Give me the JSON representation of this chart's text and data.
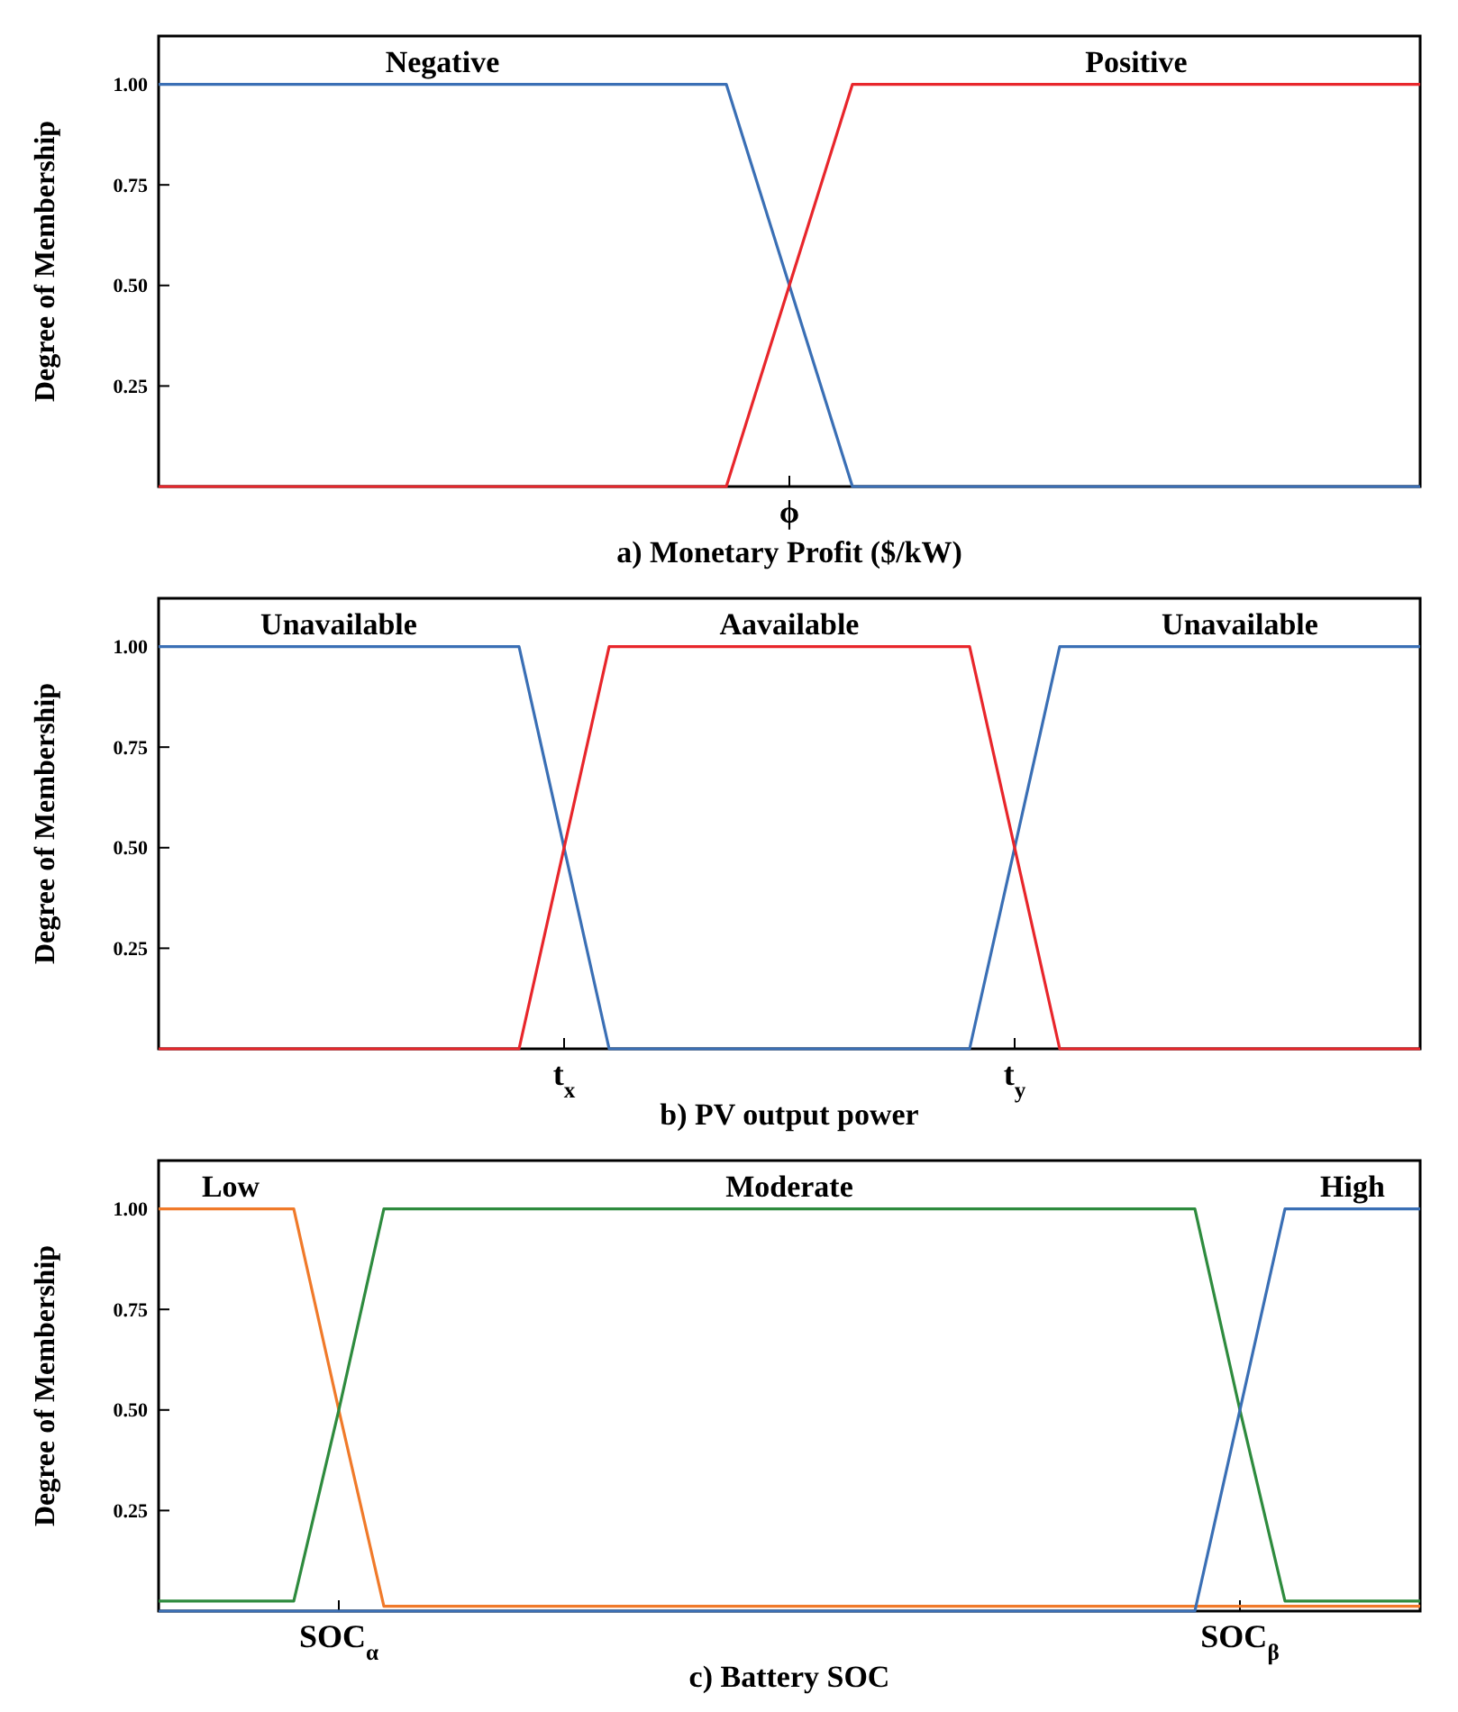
{
  "chart_data": [
    {
      "type": "line",
      "xlabel": "a) Monetary Profit ($/kW)",
      "ylabel": "Degree of Membership",
      "categories": [
        null,
        null,
        null,
        null,
        null,
        null,
        null,
        null,
        null,
        null,
        "ϕ",
        null,
        null,
        null,
        null,
        null,
        null,
        null,
        null,
        null,
        null
      ],
      "ylim": [
        0,
        1.12
      ],
      "yticks": [
        {
          "value": 0.25,
          "label": "0.25"
        },
        {
          "value": 0.5,
          "label": "0.50"
        },
        {
          "value": 0.75,
          "label": "0.75"
        },
        {
          "value": 1,
          "label": "1.00"
        }
      ],
      "grid": false,
      "legend": false,
      "marker": "none",
      "line_style": "solid",
      "series": [
        {
          "name": "Negative",
          "color": "#3a6fb5",
          "values": [
            1,
            1,
            1,
            1,
            1,
            1,
            1,
            1,
            1,
            1,
            0.5,
            0,
            0,
            0,
            0,
            0,
            0,
            0,
            0,
            0,
            0
          ]
        },
        {
          "name": "Positive",
          "color": "#e8262b",
          "values": [
            0,
            0,
            0,
            0,
            0,
            0,
            0,
            0,
            0,
            0,
            0.5,
            1,
            1,
            1,
            1,
            1,
            1,
            1,
            1,
            1,
            1
          ]
        }
      ]
    },
    {
      "type": "line",
      "xlabel": "b) PV output power",
      "ylabel": "Degree of Membership",
      "categories": [
        null,
        null,
        null,
        null,
        null,
        null,
        null,
        null,
        null,
        "t$_{x}$",
        null,
        null,
        null,
        null,
        null,
        null,
        null,
        null,
        null,
        "t$_{y}$",
        null,
        null,
        null,
        null,
        null,
        null,
        null,
        null,
        null
      ],
      "ylim": [
        0,
        1.12
      ],
      "yticks": [
        {
          "value": 0.25,
          "label": "0.25"
        },
        {
          "value": 0.5,
          "label": "0.50"
        },
        {
          "value": 0.75,
          "label": "0.75"
        },
        {
          "value": 1,
          "label": "1.00"
        }
      ],
      "grid": false,
      "legend": false,
      "marker": "none",
      "line_style": "solid",
      "series": [
        {
          "name": "Unavailable",
          "color": "#3a6fb5",
          "values": [
            1,
            1,
            1,
            1,
            1,
            1,
            1,
            1,
            1,
            0.5,
            0,
            0,
            0,
            0,
            0,
            0,
            0,
            0,
            0,
            0.5,
            1,
            1,
            1,
            1,
            1,
            1,
            1,
            1,
            1
          ]
        },
        {
          "name": "Aavailable",
          "color": "#e8262b",
          "values": [
            0,
            0,
            0,
            0,
            0,
            0,
            0,
            0,
            0,
            0.5,
            1,
            1,
            1,
            1,
            1,
            1,
            1,
            1,
            1,
            0.5,
            0,
            0,
            0,
            0,
            0,
            0,
            0,
            0,
            0
          ]
        }
      ]
    },
    {
      "type": "line",
      "xlabel": "c) Battery SOC",
      "ylabel": "Degree of Membership",
      "categories": [
        null,
        null,
        null,
        null,
        "SOC$_{α}$",
        null,
        null,
        null,
        null,
        null,
        null,
        null,
        null,
        null,
        null,
        null,
        null,
        null,
        null,
        null,
        null,
        null,
        null,
        null,
        "SOC$_{β}$",
        null,
        null,
        null,
        null
      ],
      "ylim": [
        0,
        1.12
      ],
      "yticks": [
        {
          "value": 0.25,
          "label": "0.25"
        },
        {
          "value": 0.5,
          "label": "0.50"
        },
        {
          "value": 0.75,
          "label": "0.75"
        },
        {
          "value": 1,
          "label": "1.00"
        }
      ],
      "grid": false,
      "legend": false,
      "marker": "none",
      "line_style": "solid",
      "series": [
        {
          "name": "Low",
          "color": "#f07a2a",
          "values": [
            1,
            1,
            1,
            1,
            0.5,
            0.012,
            0.012,
            0.012,
            0.012,
            0.012,
            0.012,
            0.012,
            0.012,
            0.012,
            0.012,
            0.012,
            0.012,
            0.012,
            0.012,
            0.012,
            0.012,
            0.012,
            0.012,
            0.012,
            0.012,
            0.012,
            0.012,
            0.012,
            0.012
          ]
        },
        {
          "name": "Moderate",
          "color": "#2e8b3e",
          "values": [
            0.025,
            0.025,
            0.025,
            0.025,
            0.5,
            1,
            1,
            1,
            1,
            1,
            1,
            1,
            1,
            1,
            1,
            1,
            1,
            1,
            1,
            1,
            1,
            1,
            1,
            1,
            0.5,
            0.025,
            0.025,
            0.025,
            0.025
          ]
        },
        {
          "name": "High",
          "color": "#3a6fb5",
          "values": [
            0,
            0,
            0,
            0,
            0,
            0,
            0,
            0,
            0,
            0,
            0,
            0,
            0,
            0,
            0,
            0,
            0,
            0,
            0,
            0,
            0,
            0,
            0,
            0,
            0.5,
            1,
            1,
            1,
            1
          ]
        }
      ]
    }
  ]
}
